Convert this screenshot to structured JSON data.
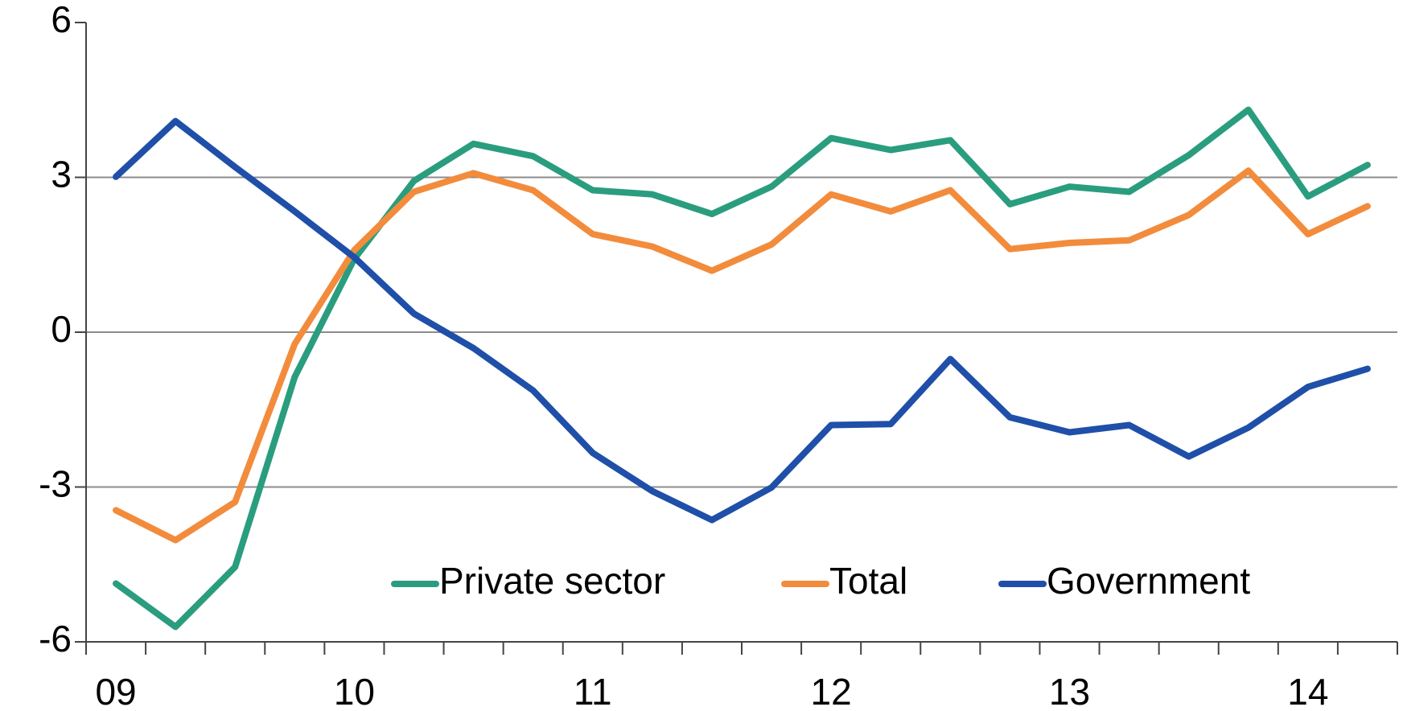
{
  "chart_data": {
    "type": "line",
    "categories": [
      "09",
      null,
      null,
      null,
      "10",
      null,
      null,
      null,
      "11",
      null,
      null,
      null,
      "12",
      null,
      null,
      null,
      "13",
      null,
      null,
      null,
      "14",
      null
    ],
    "series": [
      {
        "name": "Private sector",
        "color": "#2a9d7f",
        "values": [
          -4.87,
          -5.71,
          -4.55,
          -0.87,
          1.42,
          2.93,
          3.65,
          3.41,
          2.75,
          2.67,
          2.29,
          2.82,
          3.76,
          3.53,
          3.72,
          2.48,
          2.82,
          2.72,
          3.43,
          4.31,
          2.63,
          3.24
        ]
      },
      {
        "name": "Total",
        "color": "#f28c3c",
        "values": [
          -3.45,
          -4.03,
          -3.29,
          -0.23,
          1.59,
          2.72,
          3.08,
          2.75,
          1.9,
          1.66,
          1.19,
          1.7,
          2.67,
          2.34,
          2.75,
          1.61,
          1.73,
          1.78,
          2.27,
          3.13,
          1.9,
          2.44
        ]
      },
      {
        "name": "Government",
        "color": "#1f4fa8",
        "values": [
          3.01,
          4.09,
          3.2,
          2.34,
          1.45,
          0.36,
          -0.31,
          -1.13,
          -2.34,
          -3.08,
          -3.64,
          -3.01,
          -1.8,
          -1.78,
          -0.52,
          -1.65,
          -1.94,
          -1.8,
          -2.41,
          -1.85,
          -1.06,
          -0.71
        ]
      }
    ],
    "ylim": [
      -6,
      6
    ],
    "yticks": [
      -6,
      -3,
      0,
      3,
      6
    ],
    "grid": true
  }
}
